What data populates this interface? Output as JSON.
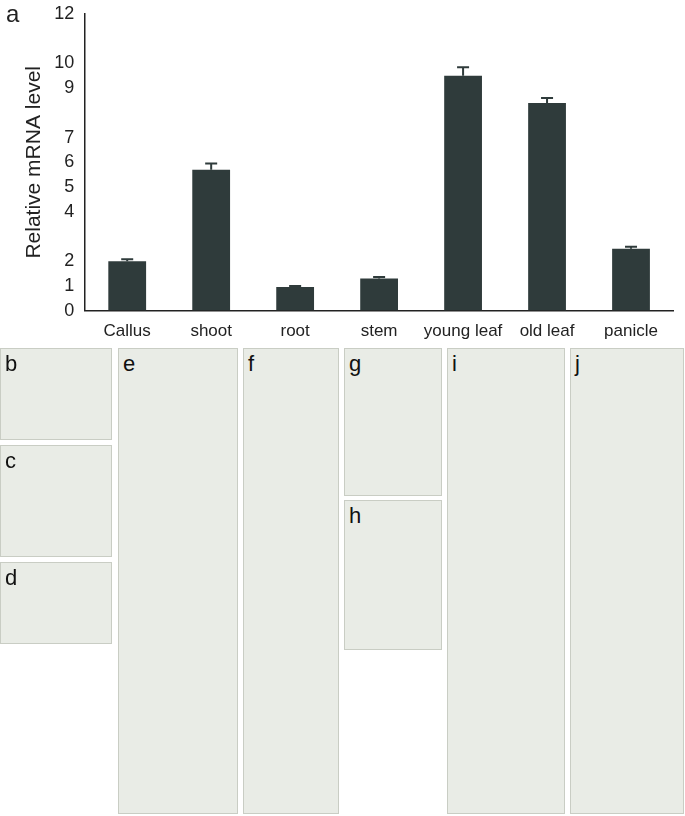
{
  "chart_data": {
    "type": "bar",
    "annotations": [
      "a"
    ],
    "y_label": "Relative mRNA level",
    "categories": [
      "Callus",
      "shoot",
      "root",
      "stem",
      "young leaf",
      "old leaf",
      "panicle"
    ],
    "values": [
      2.0,
      5.7,
      0.95,
      1.3,
      9.5,
      8.4,
      2.5
    ],
    "errors": [
      0.08,
      0.25,
      0.05,
      0.06,
      0.35,
      0.2,
      0.08
    ],
    "color": "#2f3b3b",
    "ylim": [
      0,
      12
    ],
    "yticks": [
      0,
      1,
      2,
      4,
      5,
      6,
      7,
      9,
      10,
      12
    ],
    "grid": false
  },
  "photo_panels": {
    "labels": [
      "b",
      "c",
      "d",
      "e",
      "f",
      "g",
      "h",
      "i",
      "j"
    ]
  }
}
